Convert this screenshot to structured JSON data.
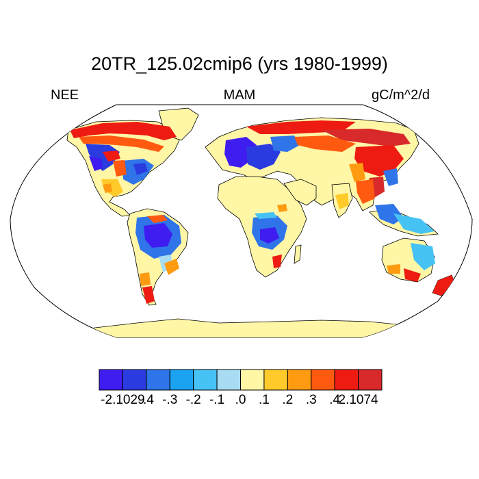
{
  "title": "20TR_125.02cmip6 (yrs 1980-1999)",
  "left_label": "NEE",
  "center_label": "MAM",
  "right_label": "gC/m^2/d",
  "projection": "Robinson",
  "colorbar": {
    "colors": [
      "#3f1cf0",
      "#2a3ce0",
      "#2f74e8",
      "#1ba2f0",
      "#46c3f4",
      "#a8dcf2",
      "#fff6a6",
      "#ffca2a",
      "#ff9b10",
      "#ff5a10",
      "#ee1b12",
      "#d82a2a"
    ],
    "labels": [
      "-2.1029",
      "-.4",
      "-.3",
      "-.2",
      "-.1",
      ".0",
      ".1",
      ".2",
      ".3",
      ".4",
      "2.1074"
    ]
  },
  "field_colors": {
    "land_neutral": "#fff6a6",
    "ocean": "#ffffff",
    "coast": "#000000"
  }
}
